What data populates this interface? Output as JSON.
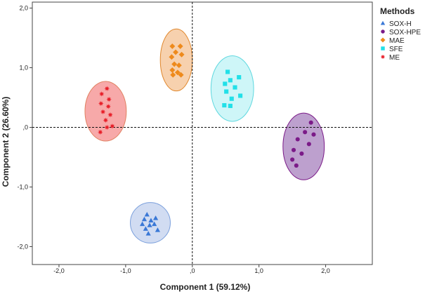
{
  "chart_data": {
    "type": "scatter",
    "xlabel": "Component 1 (59.12%)",
    "ylabel": "Component 2 (26.60%)",
    "xlim": [
      -2.4,
      2.7
    ],
    "ylim": [
      -2.3,
      2.1
    ],
    "x_ticks": [
      -2.0,
      -1.0,
      0.0,
      1.0,
      2.0
    ],
    "x_tick_labels": [
      "-2,0",
      "-1,0",
      ",0",
      "1,0",
      "2,0"
    ],
    "y_ticks": [
      2.0,
      1.0,
      0.0,
      -1.0,
      -2.0
    ],
    "y_tick_labels": [
      "2,0",
      "1,0",
      ",0",
      "-1,0",
      "-2,0"
    ],
    "reference_lines": {
      "x": 0,
      "y": 0
    },
    "legend": {
      "title": "Methods",
      "position": "top-right"
    },
    "series": [
      {
        "name": "SOX-H",
        "marker": "triangle",
        "color": "#3a78d6",
        "fill": "#c9d6f0",
        "stroke": "#7a9fdc",
        "ellipse": {
          "cx": -0.63,
          "cy": -1.6,
          "rx": 0.3,
          "ry": 0.34
        },
        "points": [
          [
            -0.68,
            -1.46
          ],
          [
            -0.72,
            -1.54
          ],
          [
            -0.62,
            -1.56
          ],
          [
            -0.55,
            -1.52
          ],
          [
            -0.75,
            -1.62
          ],
          [
            -0.64,
            -1.64
          ],
          [
            -0.57,
            -1.62
          ],
          [
            -0.7,
            -1.7
          ],
          [
            -0.52,
            -1.72
          ],
          [
            -0.66,
            -1.78
          ]
        ]
      },
      {
        "name": "SOX-HPE",
        "marker": "circle",
        "color": "#7b1a88",
        "fill": "#b28fc6",
        "stroke": "#7b1a88",
        "ellipse": {
          "cx": 1.67,
          "cy": -0.32,
          "rx": 0.31,
          "ry": 0.56
        },
        "points": [
          [
            1.78,
            0.08
          ],
          [
            1.69,
            -0.08
          ],
          [
            1.82,
            -0.12
          ],
          [
            1.58,
            -0.2
          ],
          [
            1.75,
            -0.28
          ],
          [
            1.52,
            -0.38
          ],
          [
            1.64,
            -0.44
          ],
          [
            1.5,
            -0.54
          ],
          [
            1.56,
            -0.64
          ]
        ]
      },
      {
        "name": "MAE",
        "marker": "diamond",
        "color": "#ee8a1c",
        "fill": "#f6c9a0",
        "stroke": "#e0862a",
        "ellipse": {
          "cx": -0.24,
          "cy": 1.13,
          "rx": 0.24,
          "ry": 0.52
        },
        "points": [
          [
            -0.3,
            1.36
          ],
          [
            -0.18,
            1.36
          ],
          [
            -0.25,
            1.26
          ],
          [
            -0.31,
            1.18
          ],
          [
            -0.16,
            1.22
          ],
          [
            -0.27,
            1.06
          ],
          [
            -0.2,
            1.04
          ],
          [
            -0.3,
            0.96
          ],
          [
            -0.22,
            0.92
          ],
          [
            -0.29,
            0.88
          ],
          [
            -0.17,
            0.88
          ]
        ]
      },
      {
        "name": "SFE",
        "marker": "square",
        "color": "#22e0e8",
        "fill": "#c5f5f7",
        "stroke": "#5fd8df",
        "ellipse": {
          "cx": 0.6,
          "cy": 0.65,
          "rx": 0.32,
          "ry": 0.55
        },
        "points": [
          [
            0.53,
            0.93
          ],
          [
            0.7,
            0.84
          ],
          [
            0.57,
            0.79
          ],
          [
            0.49,
            0.73
          ],
          [
            0.64,
            0.67
          ],
          [
            0.51,
            0.6
          ],
          [
            0.72,
            0.53
          ],
          [
            0.59,
            0.48
          ],
          [
            0.48,
            0.37
          ],
          [
            0.57,
            0.36
          ]
        ]
      },
      {
        "name": "ME",
        "marker": "star",
        "color": "#e8202a",
        "fill": "#f69a9a",
        "stroke": "#e08060",
        "ellipse": {
          "cx": -1.3,
          "cy": 0.27,
          "rx": 0.31,
          "ry": 0.5
        },
        "points": [
          [
            -1.28,
            0.65
          ],
          [
            -1.36,
            0.56
          ],
          [
            -1.25,
            0.47
          ],
          [
            -1.37,
            0.4
          ],
          [
            -1.26,
            0.35
          ],
          [
            -1.34,
            0.26
          ],
          [
            -1.23,
            0.21
          ],
          [
            -1.3,
            0.12
          ],
          [
            -1.2,
            0.02
          ],
          [
            -1.28,
            0.0
          ],
          [
            -1.38,
            -0.08
          ]
        ]
      }
    ]
  }
}
